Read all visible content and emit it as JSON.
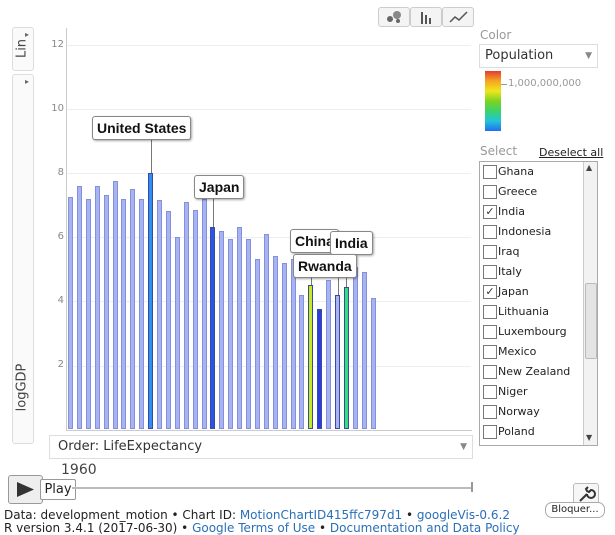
{
  "chart_type_buttons": [
    {
      "name": "bubble-chart-icon"
    },
    {
      "name": "bar-chart-icon"
    },
    {
      "name": "line-chart-icon"
    }
  ],
  "y_axis": {
    "scale_label": "Lin",
    "title": "logGDP",
    "ticks": [
      "2",
      "4",
      "6",
      "8",
      "10",
      "12"
    ]
  },
  "order": {
    "label": "Order: LifeExpectancy"
  },
  "color_panel": {
    "label": "Color",
    "selected": "Population",
    "legend_value": "1,000,000,000",
    "gradient": [
      "#e63b2e",
      "#f5a623",
      "#f0e61c",
      "#7ed321",
      "#3bd36b",
      "#23c4d8",
      "#1f6ff0"
    ]
  },
  "select_panel": {
    "label": "Select",
    "deselect": "Deselect all",
    "items": [
      {
        "label": "Ghana",
        "checked": false,
        "mark": ""
      },
      {
        "label": "Greece",
        "checked": false,
        "mark": ""
      },
      {
        "label": "India",
        "checked": true,
        "mark": "✓"
      },
      {
        "label": "Indonesia",
        "checked": false,
        "mark": ""
      },
      {
        "label": "Iraq",
        "checked": false,
        "mark": ""
      },
      {
        "label": "Italy",
        "checked": false,
        "mark": ""
      },
      {
        "label": "Japan",
        "checked": true,
        "mark": "✓"
      },
      {
        "label": "Lithuania",
        "checked": false,
        "mark": ""
      },
      {
        "label": "Luxembourg",
        "checked": false,
        "mark": ""
      },
      {
        "label": "Mexico",
        "checked": false,
        "mark": ""
      },
      {
        "label": "New Zealand",
        "checked": false,
        "mark": ""
      },
      {
        "label": "Niger",
        "checked": false,
        "mark": ""
      },
      {
        "label": "Norway",
        "checked": false,
        "mark": ""
      },
      {
        "label": "Poland",
        "checked": false,
        "mark": ""
      }
    ]
  },
  "timeline": {
    "year": "1960",
    "play_label": "Play"
  },
  "blocker_label": "Bloquer...",
  "footer": {
    "line1_prefix": "Data: development_motion • Chart ID: ",
    "chart_id": "MotionChartID415ffc797d1",
    "line1_sep": " • ",
    "googlevis": "googleVis-0.6.2",
    "line2_prefix": "R version 3.4.1 (2017-06-30) • ",
    "terms": "Google Terms of Use",
    "line2_sep": " • ",
    "docs": "Documentation and Data Policy"
  },
  "chart_data": {
    "type": "bar",
    "title": "",
    "xlabel": "",
    "ylabel": "logGDP",
    "ylim": [
      0,
      12.5
    ],
    "colors": {
      "default": "#a9b3f0",
      "default_border": "#8290e0"
    },
    "values": [
      7.25,
      7.6,
      7.2,
      7.6,
      7.3,
      7.75,
      7.2,
      7.5,
      7.2,
      8.0,
      7.15,
      6.8,
      6.0,
      7.1,
      6.85,
      7.2,
      6.3,
      6.2,
      5.95,
      6.3,
      5.95,
      5.3,
      6.1,
      5.4,
      5.2,
      5.3,
      4.2,
      4.5,
      3.75,
      4.65,
      4.2,
      4.45,
      5.05,
      4.9,
      4.1
    ],
    "highlights": [
      {
        "index": 9,
        "label": "United States",
        "color": "#2e8ef2"
      },
      {
        "index": 16,
        "label": "Japan",
        "color": "#2b55e6"
      },
      {
        "index": 27,
        "label": "Rwanda",
        "color": "#c5ea1f"
      },
      {
        "index": 28,
        "label": "",
        "color": "#2b3de0"
      },
      {
        "index": 31,
        "label": "India",
        "color": "#34e07a"
      },
      {
        "index": 30,
        "label": "China",
        "color": "#a9b3f0"
      }
    ]
  }
}
